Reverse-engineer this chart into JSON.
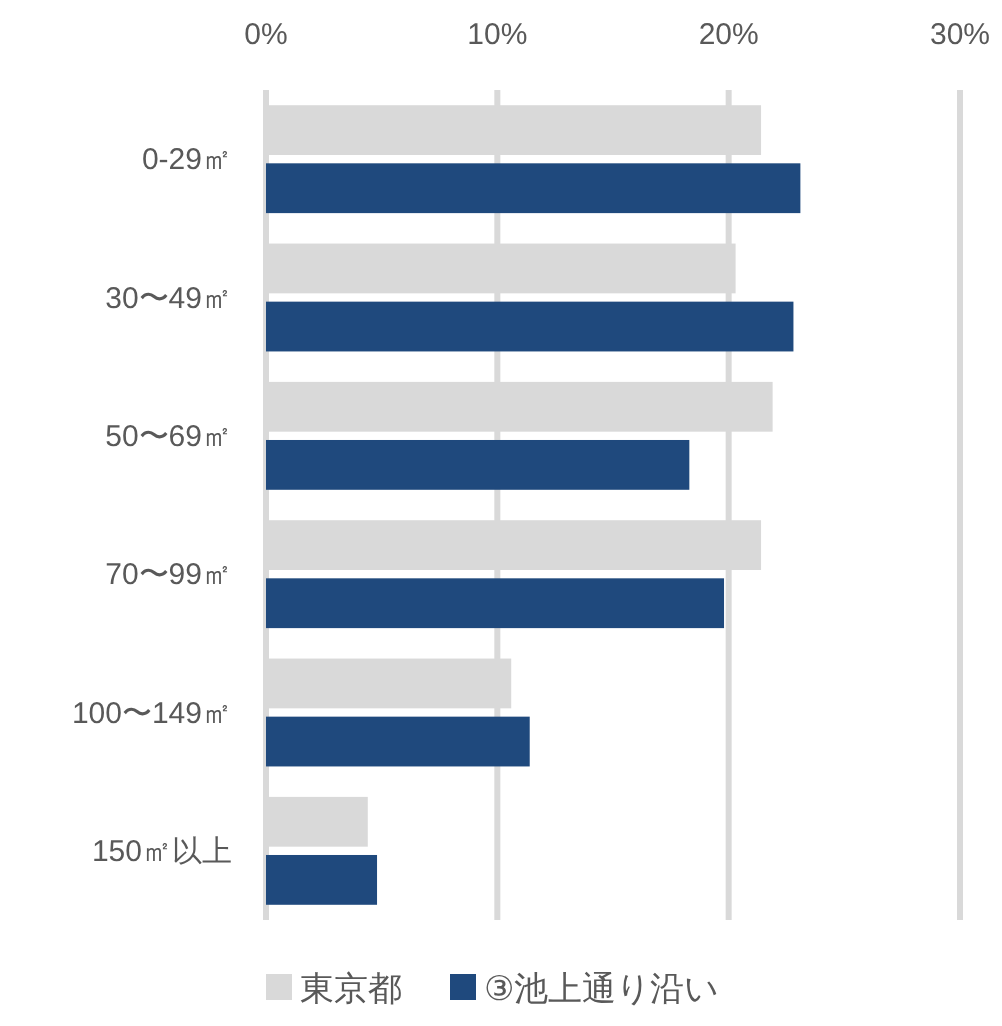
{
  "chart_data": {
    "type": "bar",
    "orientation": "horizontal",
    "categories": [
      "0-29㎡",
      "30〜49㎡",
      "50〜69㎡",
      "70〜99㎡",
      "100〜149㎡",
      "150㎡以上"
    ],
    "series": [
      {
        "name": "東京都",
        "color": "#d9d9d9",
        "values": [
          21.4,
          20.3,
          21.9,
          21.4,
          10.6,
          4.4
        ]
      },
      {
        "name": "③池上通り沿い",
        "color": "#1f497d",
        "values": [
          23.1,
          22.8,
          18.3,
          19.8,
          11.4,
          4.8
        ]
      }
    ],
    "xlim": [
      0,
      30
    ],
    "xticks": [
      {
        "value": 0,
        "label": "0%"
      },
      {
        "value": 10,
        "label": "10%"
      },
      {
        "value": 20,
        "label": "20%"
      },
      {
        "value": 30,
        "label": "30%"
      }
    ],
    "grid": "x",
    "legend": "bottom"
  }
}
